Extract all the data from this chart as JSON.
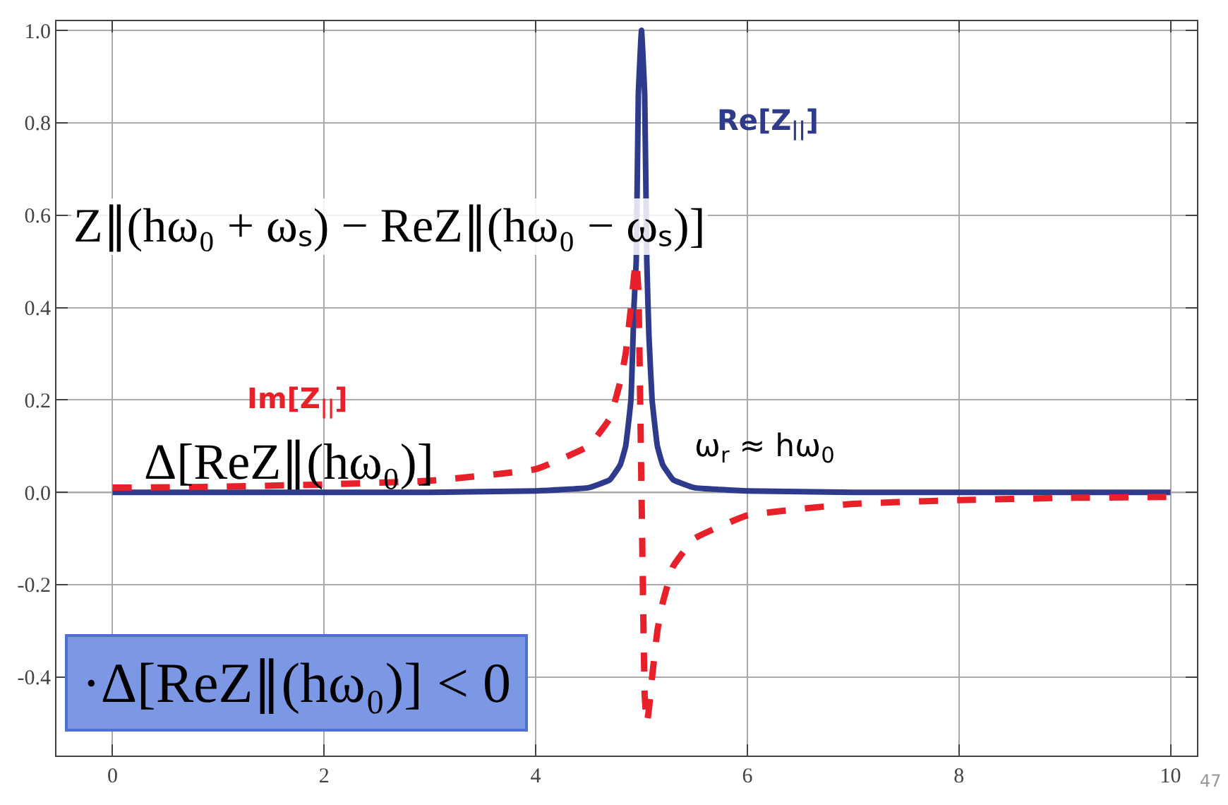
{
  "chart_data": {
    "type": "line",
    "x": [
      0,
      1,
      2,
      3,
      4,
      4.5,
      4.7,
      4.8,
      4.85,
      4.9,
      4.93,
      4.95,
      4.97,
      5,
      5.03,
      5.05,
      5.07,
      5.1,
      5.15,
      5.2,
      5.3,
      5.5,
      6,
      7,
      8,
      9,
      10
    ],
    "series": [
      {
        "name": "Re[Z$_{||}$]",
        "color": "#2e3a8c",
        "line_style": "solid",
        "values": [
          0,
          0,
          0,
          0,
          0.003,
          0.01,
          0.027,
          0.06,
          0.1,
          0.2,
          0.41,
          0.5,
          0.86,
          1.0,
          0.86,
          0.5,
          0.34,
          0.2,
          0.1,
          0.06,
          0.027,
          0.01,
          0.003,
          0,
          0,
          0,
          0
        ]
      },
      {
        "name": "Im[Z$_{||}$]",
        "color": "#e8202a",
        "line_style": "dashed",
        "values": [
          0.01,
          0.012,
          0.017,
          0.025,
          0.05,
          0.1,
          0.16,
          0.24,
          0.3,
          0.4,
          0.47,
          0.5,
          0.44,
          0,
          -0.44,
          -0.5,
          -0.47,
          -0.4,
          -0.3,
          -0.24,
          -0.16,
          -0.1,
          -0.05,
          -0.025,
          -0.017,
          -0.012,
          -0.01
        ]
      }
    ],
    "xlim": [
      -0.53,
      10.25
    ],
    "ylim": [
      -0.57,
      1.02
    ],
    "xticks": [
      0,
      2,
      4,
      6,
      8,
      10
    ],
    "yticks": [
      -0.4,
      -0.2,
      {
        "value": 0,
        "label": "0.0"
      },
      0.2,
      0.4,
      0.6,
      0.8,
      {
        "value": 1,
        "label": "1.0"
      }
    ],
    "grid": true,
    "legend": false,
    "marker": "none",
    "annotations": [
      "ω$_{r}$ ≈ hω$_{0}$",
      "Z∥(hω₀ + ωₛ) − ReZ∥(hω₀ − ωₛ)]",
      "Δ[ReZ∥(hω₀)]",
      "·Δ[ReZ∥(hω₀)] < 0",
      "47"
    ]
  }
}
